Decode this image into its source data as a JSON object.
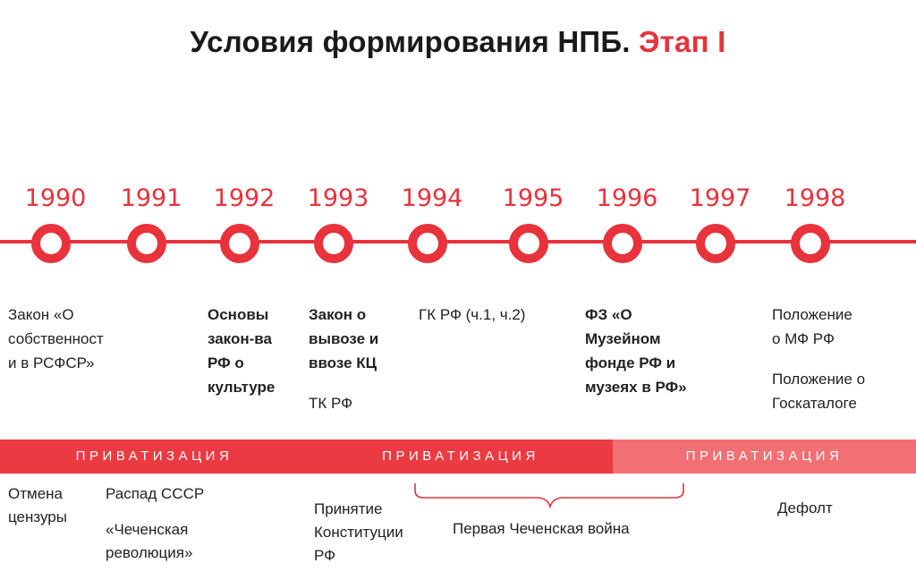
{
  "title": {
    "main": "Условия формирования НПБ.",
    "accent": "Этап I"
  },
  "years": [
    "1990",
    "1991",
    "1992",
    "1993",
    "1994",
    "1995",
    "1996",
    "1997",
    "1998"
  ],
  "events": {
    "e1990": [
      "Закон «О",
      "собственност",
      "и в РСФСР»"
    ],
    "e1992": [
      "Основы",
      "закон-ва",
      "РФ о",
      "культуре"
    ],
    "e1993a": [
      "Закон о",
      "вывозе и",
      "ввозе КЦ"
    ],
    "e1993b": [
      "ТК РФ"
    ],
    "e1994": [
      "ГК РФ (ч.1, ч.2)"
    ],
    "e1996": [
      "ФЗ «О",
      "Музейном",
      "фонде РФ и",
      "музеях в РФ»"
    ],
    "e1998a": [
      "Положение",
      "о МФ РФ"
    ],
    "e1998b": [
      "Положение о",
      "Госкаталоге"
    ]
  },
  "bands": [
    "ПРИВАТИЗАЦИЯ",
    "ПРИВАТИЗАЦИЯ",
    "ПРИВАТИЗАЦИЯ"
  ],
  "bottom": {
    "censorship": [
      "Отмена",
      "цензуры"
    ],
    "ussr": "Распад СССР",
    "revolution": [
      "«Чеченская",
      "революция»"
    ],
    "constitution": [
      "Принятие",
      "Конституции",
      "РФ"
    ],
    "war": "Первая Чеченская война",
    "default": "Дефолт"
  },
  "colors": {
    "accent": "#e8323c",
    "band": "#ec3a43",
    "band_light": "#f26f74"
  }
}
